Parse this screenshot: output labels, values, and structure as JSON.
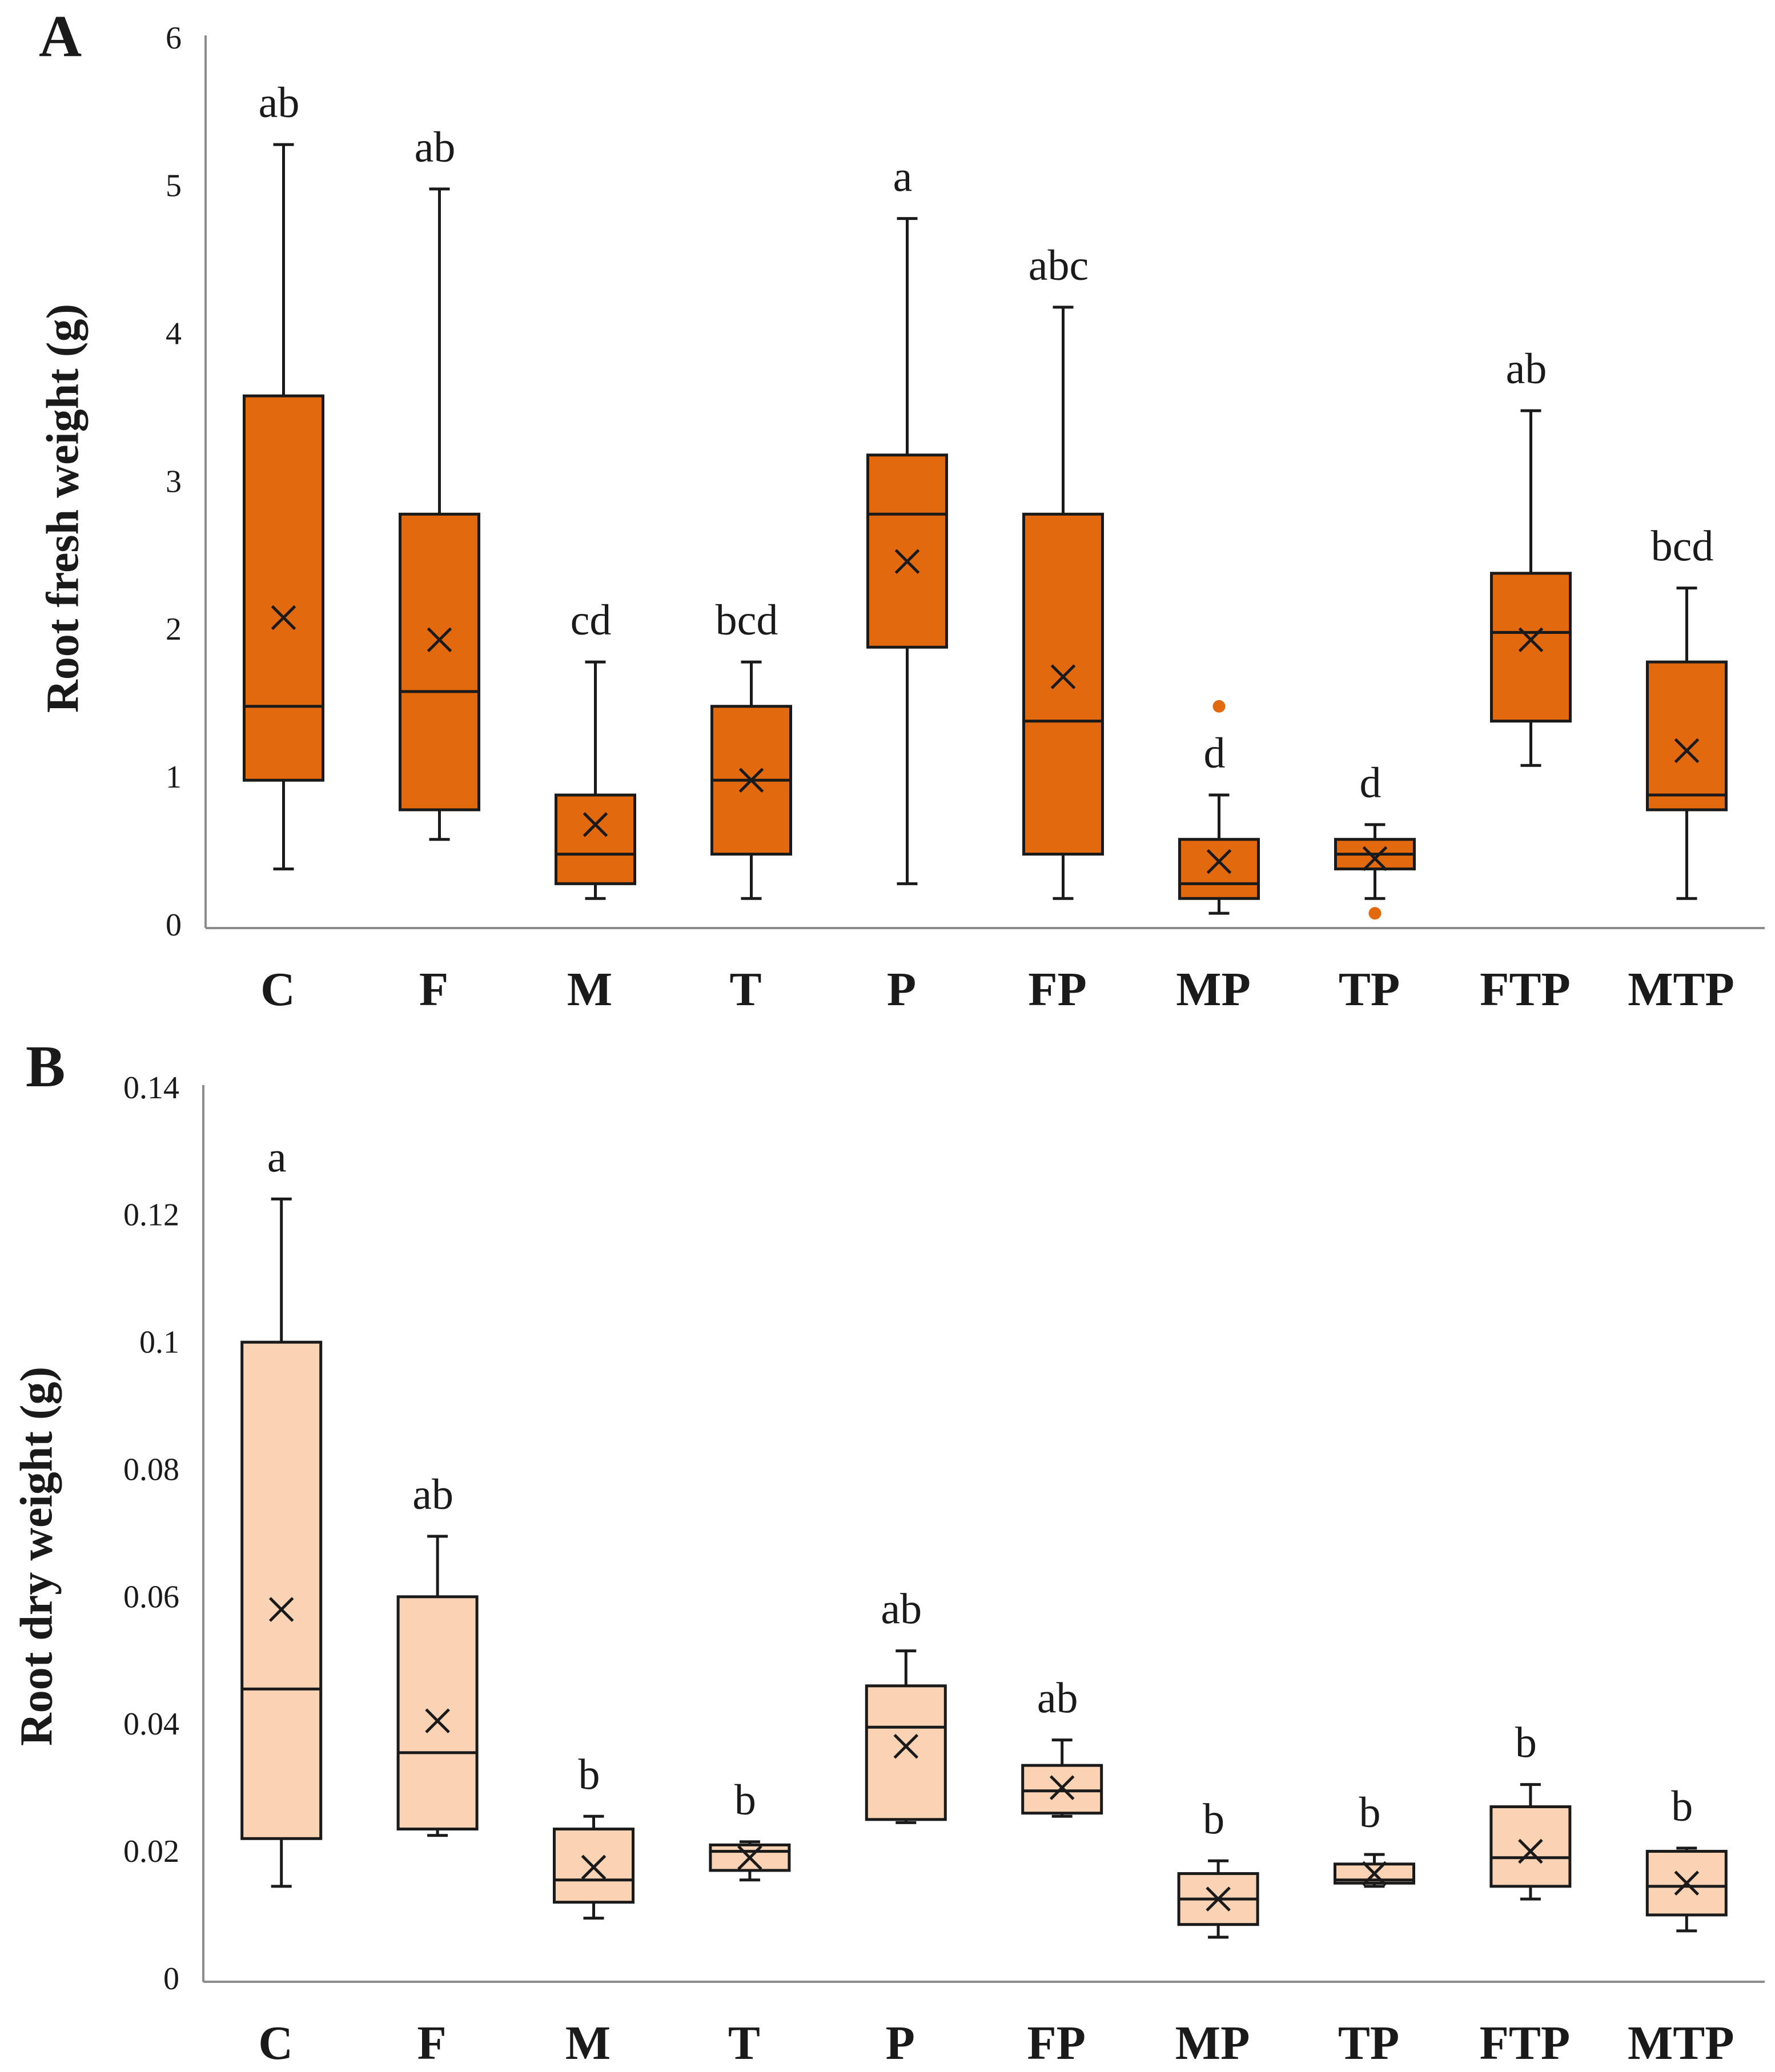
{
  "chart_data": [
    {
      "type": "box",
      "panel_label": "A",
      "title": "",
      "xlabel": "",
      "ylabel": "Root fresh weight (g)",
      "ylim": [
        0,
        6
      ],
      "yticks": [
        0,
        1,
        2,
        3,
        4,
        5,
        6
      ],
      "ytick_labels": [
        "0",
        "1",
        "2",
        "3",
        "4",
        "5",
        "6"
      ],
      "grid": false,
      "legend": "none",
      "box_color": "#E2690E",
      "edge_color": "#1a1a1a",
      "categories": [
        "C",
        "F",
        "M",
        "T",
        "P",
        "FP",
        "MP",
        "TP",
        "FTP",
        "MTP"
      ],
      "boxes": [
        {
          "category": "C",
          "min": 0.4,
          "q1": 1.0,
          "median": 1.5,
          "q3": 3.6,
          "max": 5.3,
          "mean": 2.1,
          "outliers": [],
          "letters": "ab"
        },
        {
          "category": "F",
          "min": 0.6,
          "q1": 0.8,
          "median": 1.6,
          "q3": 2.8,
          "max": 5.0,
          "mean": 1.95,
          "outliers": [],
          "letters": "ab"
        },
        {
          "category": "M",
          "min": 0.2,
          "q1": 0.3,
          "median": 0.5,
          "q3": 0.9,
          "max": 1.8,
          "mean": 0.7,
          "outliers": [],
          "letters": "cd"
        },
        {
          "category": "T",
          "min": 0.2,
          "q1": 0.5,
          "median": 1.0,
          "q3": 1.5,
          "max": 1.8,
          "mean": 1.0,
          "outliers": [],
          "letters": "bcd"
        },
        {
          "category": "P",
          "min": 0.3,
          "q1": 1.9,
          "median": 2.8,
          "q3": 3.2,
          "max": 4.8,
          "mean": 2.48,
          "outliers": [],
          "letters": "a"
        },
        {
          "category": "FP",
          "min": 0.2,
          "q1": 0.5,
          "median": 1.4,
          "q3": 2.8,
          "max": 4.2,
          "mean": 1.7,
          "outliers": [],
          "letters": "abc"
        },
        {
          "category": "MP",
          "min": 0.1,
          "q1": 0.2,
          "median": 0.3,
          "q3": 0.6,
          "max": 0.9,
          "mean": 0.45,
          "outliers": [
            1.5
          ],
          "letters": "d"
        },
        {
          "category": "TP",
          "min": 0.2,
          "q1": 0.4,
          "median": 0.5,
          "q3": 0.6,
          "max": 0.7,
          "mean": 0.47,
          "outliers": [
            0.1
          ],
          "letters": "d"
        },
        {
          "category": "FTP",
          "min": 1.1,
          "q1": 1.4,
          "median": 2.0,
          "q3": 2.4,
          "max": 3.5,
          "mean": 1.95,
          "outliers": [],
          "letters": "ab"
        },
        {
          "category": "MTP",
          "min": 0.2,
          "q1": 0.8,
          "median": 0.9,
          "q3": 1.8,
          "max": 2.3,
          "mean": 1.2,
          "outliers": [],
          "letters": "bcd"
        }
      ]
    },
    {
      "type": "box",
      "panel_label": "B",
      "title": "",
      "xlabel": "",
      "ylabel": "Root dry weight (g)",
      "ylim": [
        0,
        0.14
      ],
      "yticks": [
        0,
        0.02,
        0.04,
        0.06,
        0.08,
        0.1,
        0.12,
        0.14
      ],
      "ytick_labels": [
        "0",
        "0.02",
        "0.04",
        "0.06",
        "0.08",
        "0.1",
        "0.12",
        "0.14"
      ],
      "grid": false,
      "legend": "none",
      "box_color": "#FAD3B4",
      "edge_color": "#1a1a1a",
      "categories": [
        "C",
        "F",
        "M",
        "T",
        "P",
        "FP",
        "MP",
        "TP",
        "FTP",
        "MTP"
      ],
      "boxes": [
        {
          "category": "C",
          "min": 0.015,
          "q1": 0.0225,
          "median": 0.046,
          "q3": 0.1005,
          "max": 0.123,
          "mean": 0.0585,
          "outliers": [],
          "letters": "a"
        },
        {
          "category": "F",
          "min": 0.023,
          "q1": 0.024,
          "median": 0.036,
          "q3": 0.0605,
          "max": 0.07,
          "mean": 0.041,
          "outliers": [],
          "letters": "ab"
        },
        {
          "category": "M",
          "min": 0.01,
          "q1": 0.0125,
          "median": 0.016,
          "q3": 0.024,
          "max": 0.026,
          "mean": 0.018,
          "outliers": [],
          "letters": "b"
        },
        {
          "category": "T",
          "min": 0.016,
          "q1": 0.0175,
          "median": 0.0205,
          "q3": 0.0215,
          "max": 0.022,
          "mean": 0.0195,
          "outliers": [],
          "letters": "b"
        },
        {
          "category": "P",
          "min": 0.025,
          "q1": 0.0255,
          "median": 0.04,
          "q3": 0.0465,
          "max": 0.052,
          "mean": 0.037,
          "outliers": [],
          "letters": "ab"
        },
        {
          "category": "FP",
          "min": 0.026,
          "q1": 0.0265,
          "median": 0.03,
          "q3": 0.034,
          "max": 0.038,
          "mean": 0.0305,
          "outliers": [],
          "letters": "ab"
        },
        {
          "category": "MP",
          "min": 0.007,
          "q1": 0.009,
          "median": 0.013,
          "q3": 0.017,
          "max": 0.019,
          "mean": 0.013,
          "outliers": [],
          "letters": "b"
        },
        {
          "category": "TP",
          "min": 0.015,
          "q1": 0.0155,
          "median": 0.016,
          "q3": 0.0185,
          "max": 0.02,
          "mean": 0.017,
          "outliers": [],
          "letters": "b"
        },
        {
          "category": "FTP",
          "min": 0.013,
          "q1": 0.015,
          "median": 0.0195,
          "q3": 0.0275,
          "max": 0.031,
          "mean": 0.0205,
          "outliers": [],
          "letters": "b"
        },
        {
          "category": "MTP",
          "min": 0.008,
          "q1": 0.0105,
          "median": 0.015,
          "q3": 0.0205,
          "max": 0.021,
          "mean": 0.0155,
          "outliers": [],
          "letters": "b"
        }
      ]
    }
  ]
}
